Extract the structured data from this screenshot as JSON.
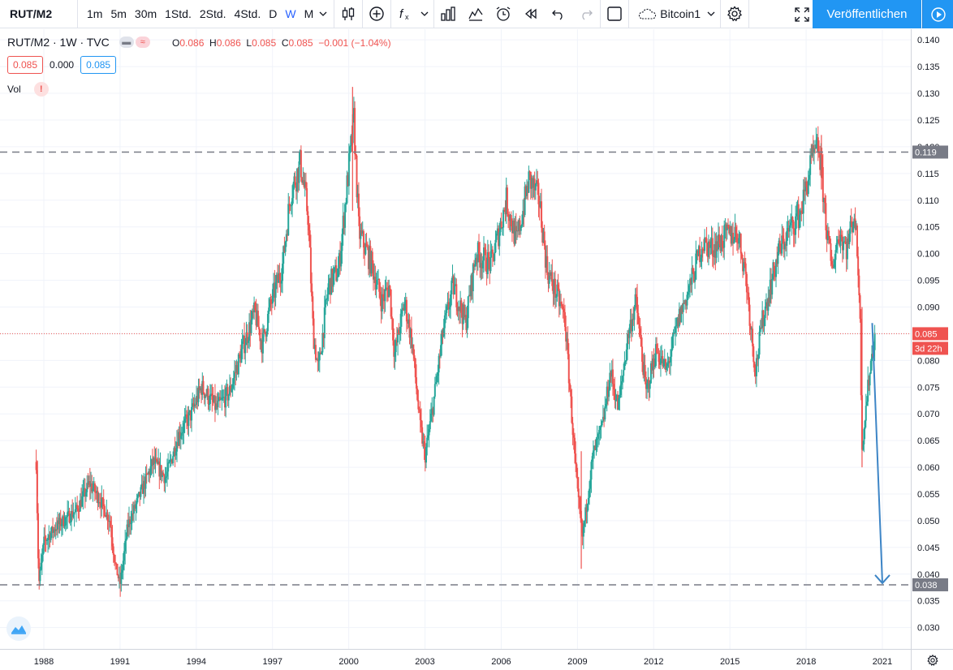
{
  "toolbar": {
    "symbol": "RUT/M2",
    "intervals": [
      "1m",
      "5m",
      "30m",
      "1Std.",
      "2Std.",
      "4Std.",
      "D",
      "W",
      "M"
    ],
    "active_interval": "W",
    "cloud_label": "Bitcoin1",
    "publish_label": "Veröffentlichen",
    "icons": [
      "candles-icon",
      "plus-circle-icon",
      "fx-icon",
      "chevron-down-icon",
      "bar-chart-icon",
      "templates-icon",
      "alarm-icon",
      "replay-icon",
      "undo-icon",
      "redo-icon",
      "square-icon",
      "cloud-icon",
      "chevron-down-icon",
      "gear-icon",
      "fullscreen-icon",
      "play-icon"
    ]
  },
  "legend": {
    "title": "RUT/M2 · 1W · TVC",
    "o_label": "O",
    "o_value": "0.086",
    "h_label": "H",
    "h_value": "0.086",
    "l_label": "L",
    "l_value": "0.085",
    "c_label": "C",
    "c_value": "0.085",
    "change": "−0.001 (−1.04%)",
    "bid": "0.085",
    "spread": "0.000",
    "ask": "0.085",
    "vol_label": "Vol",
    "vol_warning": "!"
  },
  "price_axis": {
    "ticks": [
      "0.140",
      "0.135",
      "0.130",
      "0.125",
      "0.120",
      "0.115",
      "0.110",
      "0.105",
      "0.100",
      "0.095",
      "0.090",
      "0.085",
      "0.080",
      "0.075",
      "0.070",
      "0.065",
      "0.060",
      "0.055",
      "0.050",
      "0.045",
      "0.040",
      "0.035",
      "0.030"
    ],
    "level_high": "0.119",
    "last_price": "0.085",
    "countdown": "3d 22h",
    "level_low": "0.038"
  },
  "time_axis": {
    "labels": [
      "1988",
      "1991",
      "1994",
      "1997",
      "2000",
      "2003",
      "2006",
      "2009",
      "2012",
      "2015",
      "2018",
      "2021"
    ]
  },
  "colors": {
    "up": "#26a69a",
    "down": "#ef5350",
    "accent": "#2196f3",
    "dashed_line": "#787b86",
    "arrow": "#3d85c6"
  },
  "chart_data": {
    "type": "candlestick",
    "ylim": [
      0.026,
      0.142
    ],
    "y_scale": "linear",
    "xlim": [
      1987.0,
      2022.0
    ],
    "grid": true,
    "horizontal_levels": [
      0.119,
      0.038
    ],
    "last_price_line": 0.085,
    "projection_arrow": {
      "from": [
        2020.6,
        0.087
      ],
      "to": [
        2021.0,
        0.038
      ]
    },
    "anchor_points": [
      [
        1987.7,
        0.061
      ],
      [
        1987.8,
        0.038
      ],
      [
        1988.0,
        0.046
      ],
      [
        1988.5,
        0.049
      ],
      [
        1989.3,
        0.052
      ],
      [
        1989.8,
        0.057
      ],
      [
        1990.2,
        0.054
      ],
      [
        1990.6,
        0.05
      ],
      [
        1990.8,
        0.042
      ],
      [
        1991.0,
        0.038
      ],
      [
        1991.3,
        0.049
      ],
      [
        1991.8,
        0.055
      ],
      [
        1992.3,
        0.061
      ],
      [
        1992.8,
        0.058
      ],
      [
        1993.3,
        0.066
      ],
      [
        1993.8,
        0.07
      ],
      [
        1994.2,
        0.075
      ],
      [
        1994.8,
        0.071
      ],
      [
        1995.3,
        0.074
      ],
      [
        1995.8,
        0.082
      ],
      [
        1996.3,
        0.089
      ],
      [
        1996.6,
        0.083
      ],
      [
        1996.9,
        0.09
      ],
      [
        1997.4,
        0.098
      ],
      [
        1997.7,
        0.111
      ],
      [
        1998.1,
        0.117
      ],
      [
        1998.4,
        0.107
      ],
      [
        1998.6,
        0.085
      ],
      [
        1998.8,
        0.078
      ],
      [
        1999.2,
        0.094
      ],
      [
        1999.6,
        0.097
      ],
      [
        2000.0,
        0.116
      ],
      [
        2000.2,
        0.125
      ],
      [
        2000.4,
        0.104
      ],
      [
        2000.9,
        0.098
      ],
      [
        2001.3,
        0.091
      ],
      [
        2001.6,
        0.094
      ],
      [
        2001.8,
        0.081
      ],
      [
        2002.2,
        0.091
      ],
      [
        2002.5,
        0.083
      ],
      [
        2002.8,
        0.068
      ],
      [
        2003.0,
        0.062
      ],
      [
        2003.3,
        0.071
      ],
      [
        2003.7,
        0.085
      ],
      [
        2004.1,
        0.094
      ],
      [
        2004.6,
        0.087
      ],
      [
        2005.0,
        0.1
      ],
      [
        2005.6,
        0.098
      ],
      [
        2006.2,
        0.11
      ],
      [
        2006.6,
        0.102
      ],
      [
        2007.1,
        0.114
      ],
      [
        2007.5,
        0.11
      ],
      [
        2007.8,
        0.097
      ],
      [
        2008.2,
        0.092
      ],
      [
        2008.5,
        0.088
      ],
      [
        2008.8,
        0.068
      ],
      [
        2009.0,
        0.055
      ],
      [
        2009.2,
        0.047
      ],
      [
        2009.6,
        0.062
      ],
      [
        2010.0,
        0.068
      ],
      [
        2010.3,
        0.078
      ],
      [
        2010.6,
        0.071
      ],
      [
        2011.0,
        0.085
      ],
      [
        2011.3,
        0.091
      ],
      [
        2011.7,
        0.074
      ],
      [
        2012.1,
        0.082
      ],
      [
        2012.5,
        0.078
      ],
      [
        2013.0,
        0.088
      ],
      [
        2013.5,
        0.095
      ],
      [
        2013.9,
        0.102
      ],
      [
        2014.3,
        0.101
      ],
      [
        2014.8,
        0.103
      ],
      [
        2015.3,
        0.104
      ],
      [
        2015.6,
        0.097
      ],
      [
        2016.0,
        0.078
      ],
      [
        2016.3,
        0.088
      ],
      [
        2016.9,
        0.1
      ],
      [
        2017.3,
        0.104
      ],
      [
        2017.8,
        0.108
      ],
      [
        2018.2,
        0.117
      ],
      [
        2018.5,
        0.12
      ],
      [
        2018.8,
        0.105
      ],
      [
        2019.0,
        0.097
      ],
      [
        2019.3,
        0.104
      ],
      [
        2019.6,
        0.101
      ],
      [
        2019.9,
        0.108
      ],
      [
        2020.1,
        0.093
      ],
      [
        2020.2,
        0.064
      ],
      [
        2020.5,
        0.078
      ],
      [
        2020.7,
        0.085
      ]
    ]
  }
}
